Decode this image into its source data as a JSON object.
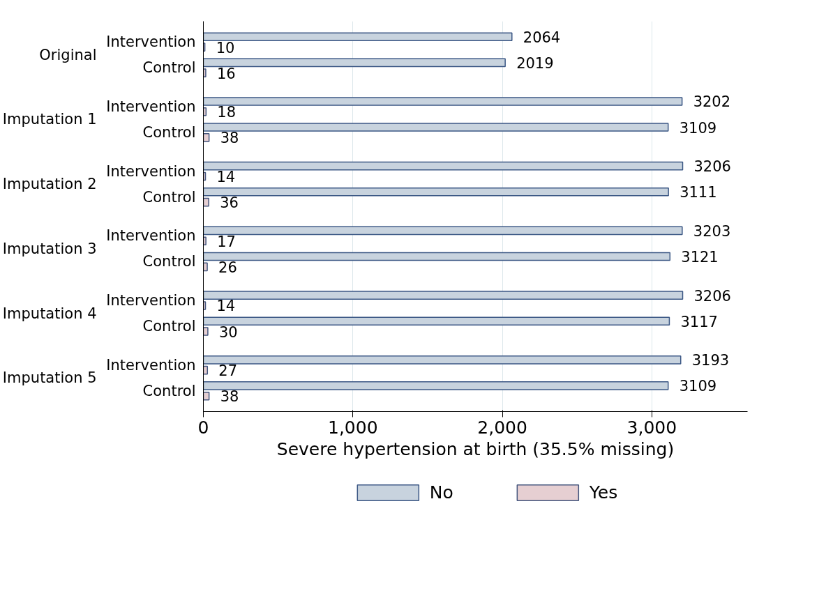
{
  "chart_data": {
    "type": "bar",
    "orientation": "horizontal",
    "categories": [
      "Intervention",
      "Control",
      "Intervention",
      "Control",
      "Intervention",
      "Control",
      "Intervention",
      "Control",
      "Intervention",
      "Control",
      "Intervention",
      "Control"
    ],
    "annotations": [
      "Original",
      "Imputation 1",
      "Imputation 2",
      "Imputation 3",
      "Imputation 4",
      "Imputation 5"
    ],
    "series": [
      {
        "name": "No",
        "color": "#c8d3de",
        "values": [
          2064,
          2019,
          3202,
          3109,
          3206,
          3111,
          3203,
          3121,
          3206,
          3117,
          3193,
          3109
        ]
      },
      {
        "name": "Yes",
        "color": "#e6cfd2",
        "values": [
          10,
          16,
          18,
          38,
          14,
          36,
          17,
          26,
          14,
          30,
          27,
          38
        ]
      }
    ],
    "xlabel": "Severe hypertension at birth (35.5% missing)",
    "xlim": [
      0,
      3640
    ],
    "xticks": [
      0,
      {
        "value": 1000,
        "label": "1,000"
      },
      {
        "value": 2000,
        "label": "2,000"
      },
      {
        "value": 3000,
        "label": "3,000"
      }
    ],
    "grid": "x",
    "legend": "bottom",
    "data_labels": true
  }
}
